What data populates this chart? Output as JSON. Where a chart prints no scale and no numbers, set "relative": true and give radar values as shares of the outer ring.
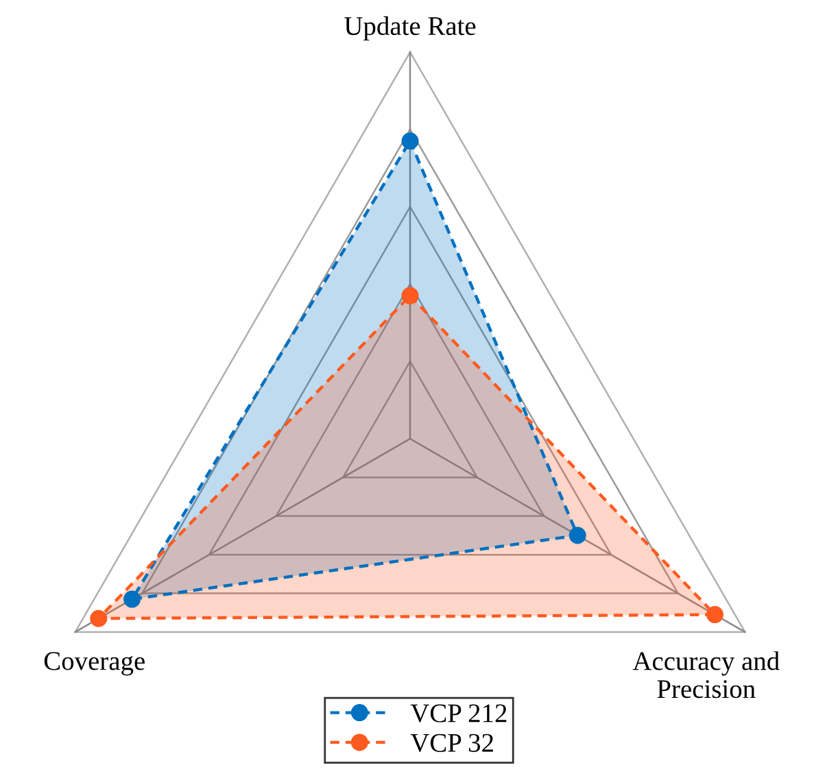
{
  "chart_data": {
    "type": "radar",
    "relative": true,
    "categories": [
      "Update Rate",
      "Accuracy and\nPrecision",
      "Coverage"
    ],
    "series": [
      {
        "name": "VCP 212",
        "color": "#0070c0",
        "values": [
          0.77,
          0.5,
          0.83
        ]
      },
      {
        "name": "VCP 32",
        "color": "#ff5a1f",
        "values": [
          0.37,
          0.91,
          0.93
        ]
      }
    ],
    "grid": true,
    "legend": "bottom",
    "marker": "circle",
    "line_style": "dashed"
  }
}
